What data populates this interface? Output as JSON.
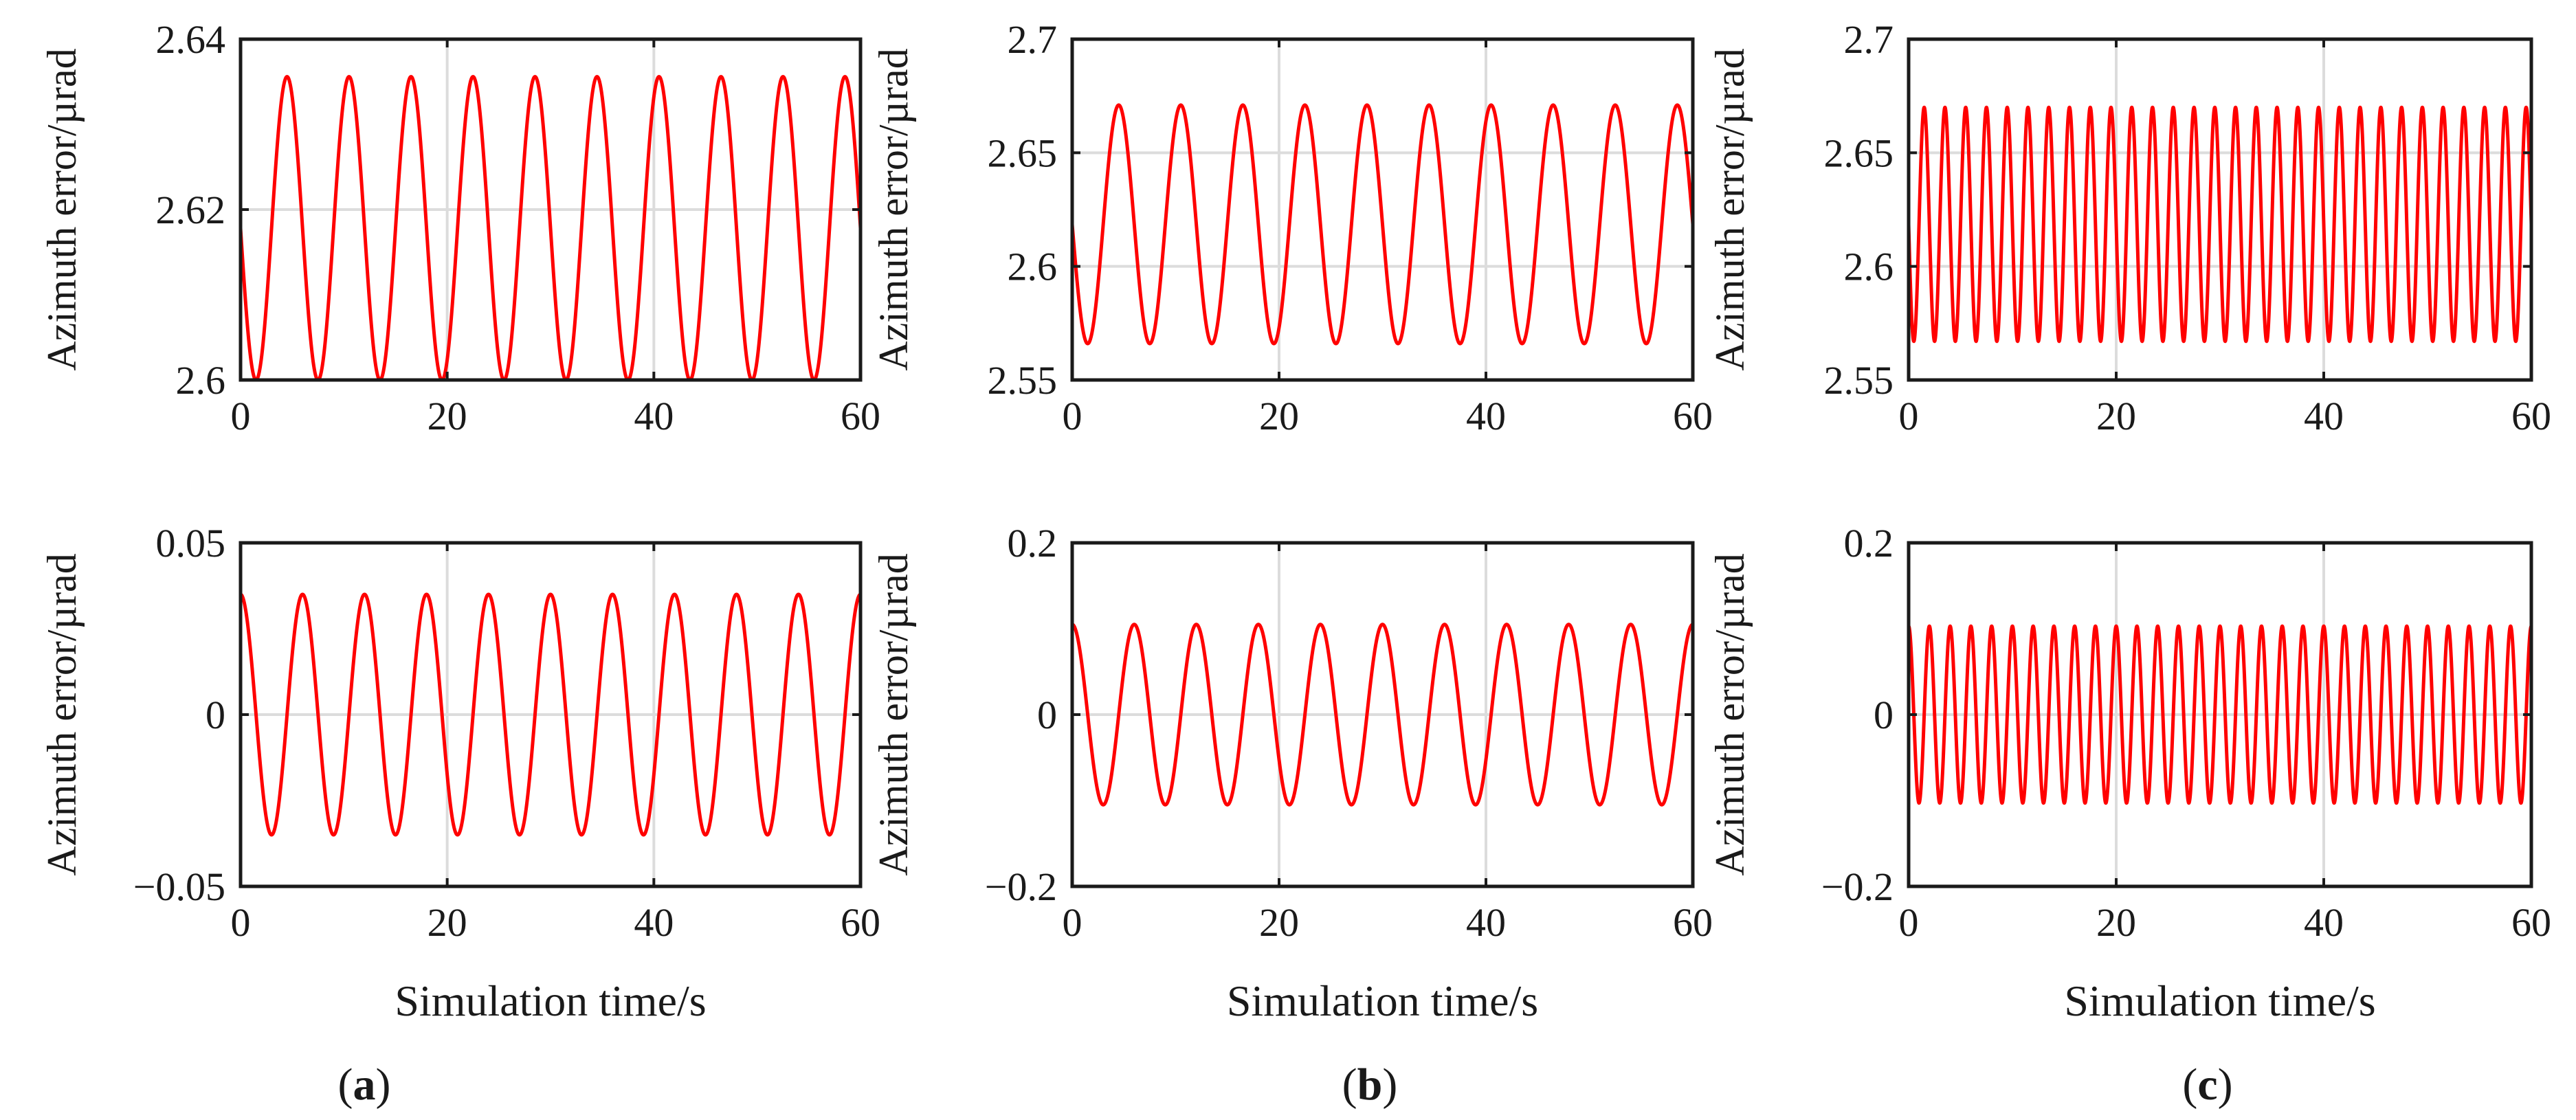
{
  "figure": {
    "panel_labels": [
      "a",
      "b",
      "c"
    ]
  },
  "chart_data": [
    {
      "type": "line",
      "panel": "a",
      "row": "top",
      "title": "",
      "xlabel": "",
      "ylabel": "Azimuth error/µrad",
      "xlim": [
        0,
        60
      ],
      "ylim": [
        2.6,
        2.64
      ],
      "xticks": [
        0,
        20,
        40,
        60
      ],
      "xtick_labels": [
        "0",
        "20",
        "40",
        "60"
      ],
      "yticks": [
        2.6,
        2.62,
        2.64
      ],
      "ytick_labels": [
        "2.6",
        "2.62",
        "2.64"
      ],
      "grid": true,
      "series": [
        {
          "name": "azimuth error",
          "color": "#ff0000",
          "function": "sinusoid",
          "offset": 2.6178,
          "amplitude": 0.0178,
          "period": 6.0,
          "phase_shift": 4.5
        }
      ]
    },
    {
      "type": "line",
      "panel": "b",
      "row": "top",
      "title": "",
      "xlabel": "",
      "ylabel": "Azimuth error/µrad",
      "xlim": [
        0,
        60
      ],
      "ylim": [
        2.55,
        2.7
      ],
      "xticks": [
        0,
        20,
        40,
        60
      ],
      "xtick_labels": [
        "0",
        "20",
        "40",
        "60"
      ],
      "yticks": [
        2.55,
        2.6,
        2.65,
        2.7
      ],
      "ytick_labels": [
        "2.55",
        "2.6",
        "2.65",
        "2.7"
      ],
      "grid": true,
      "series": [
        {
          "name": "azimuth error",
          "color": "#ff0000",
          "function": "sinusoid",
          "offset": 2.6185,
          "amplitude": 0.0525,
          "period": 6.0,
          "phase_shift": 4.5
        }
      ]
    },
    {
      "type": "line",
      "panel": "c",
      "row": "top",
      "title": "",
      "xlabel": "",
      "ylabel": "Azimuth error/µrad",
      "xlim": [
        0,
        60
      ],
      "ylim": [
        2.55,
        2.7
      ],
      "xticks": [
        0,
        20,
        40,
        60
      ],
      "xtick_labels": [
        "0",
        "20",
        "40",
        "60"
      ],
      "yticks": [
        2.55,
        2.6,
        2.65,
        2.7
      ],
      "ytick_labels": [
        "2.55",
        "2.6",
        "2.65",
        "2.7"
      ],
      "grid": true,
      "series": [
        {
          "name": "azimuth error",
          "color": "#ff0000",
          "function": "sinusoid",
          "offset": 2.6185,
          "amplitude": 0.0515,
          "period": 2.0,
          "phase_shift": 1.5
        }
      ]
    },
    {
      "type": "line",
      "panel": "a",
      "row": "bottom",
      "title": "",
      "xlabel": "Simulation time/s",
      "ylabel": "Azimuth error/µrad",
      "xlim": [
        0,
        60
      ],
      "ylim": [
        -0.05,
        0.05
      ],
      "xticks": [
        0,
        20,
        40,
        60
      ],
      "xtick_labels": [
        "0",
        "20",
        "40",
        "60"
      ],
      "yticks": [
        -0.05,
        0,
        0.05
      ],
      "ytick_labels": [
        "−0.05",
        "0",
        "0.05"
      ],
      "grid": true,
      "series": [
        {
          "name": "azimuth error",
          "color": "#ff0000",
          "function": "sinusoid",
          "offset": 0,
          "amplitude": 0.035,
          "period": 6.0,
          "phase_shift": 0
        }
      ]
    },
    {
      "type": "line",
      "panel": "b",
      "row": "bottom",
      "title": "",
      "xlabel": "Simulation time/s",
      "ylabel": "Azimuth error/µrad",
      "xlim": [
        0,
        60
      ],
      "ylim": [
        -0.2,
        0.2
      ],
      "xticks": [
        0,
        20,
        40,
        60
      ],
      "xtick_labels": [
        "0",
        "20",
        "40",
        "60"
      ],
      "yticks": [
        -0.2,
        0,
        0.2
      ],
      "ytick_labels": [
        "−0.2",
        "0",
        "0.2"
      ],
      "grid": true,
      "series": [
        {
          "name": "azimuth error",
          "color": "#ff0000",
          "function": "sinusoid",
          "offset": 0,
          "amplitude": 0.105,
          "period": 6.0,
          "phase_shift": 0
        }
      ]
    },
    {
      "type": "line",
      "panel": "c",
      "row": "bottom",
      "title": "",
      "xlabel": "Simulation time/s",
      "ylabel": "Azimuth error/µrad",
      "xlim": [
        0,
        60
      ],
      "ylim": [
        -0.2,
        0.2
      ],
      "xticks": [
        0,
        20,
        40,
        60
      ],
      "xtick_labels": [
        "0",
        "20",
        "40",
        "60"
      ],
      "yticks": [
        -0.2,
        0,
        0.2
      ],
      "ytick_labels": [
        "−0.2",
        "0",
        "0.2"
      ],
      "grid": true,
      "series": [
        {
          "name": "azimuth error",
          "color": "#ff0000",
          "function": "sinusoid",
          "offset": 0,
          "amplitude": 0.103,
          "period": 2.0,
          "phase_shift": 0
        }
      ]
    }
  ]
}
